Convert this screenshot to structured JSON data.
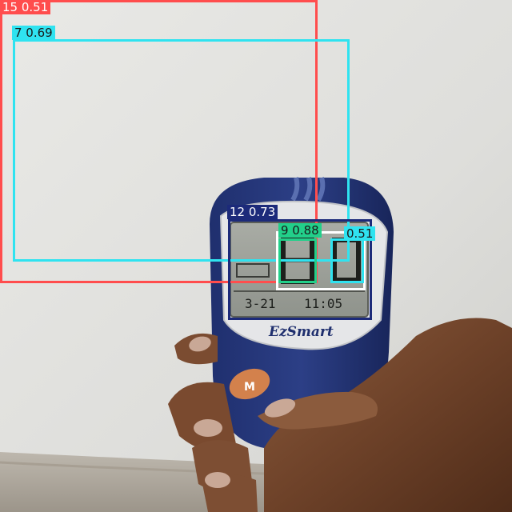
{
  "device": {
    "brand": "EzSmart",
    "button_label": "M",
    "display_small_text": "3-21",
    "display_time_text": "11:05"
  },
  "detections": [
    {
      "id": "det-15",
      "label": "15 0.51",
      "color": "#ff4d4d",
      "text_color": "#ffffff"
    },
    {
      "id": "det-7",
      "label": "7 0.69",
      "color": "#2fe3f0",
      "text_color": "#1a1a1a"
    },
    {
      "id": "det-12",
      "label": "12 0.73",
      "color": "#1c2a7a",
      "text_color": "#ffffff"
    },
    {
      "id": "det-9",
      "label": "9 0.88",
      "color": "#22d08a",
      "text_color": "#1a1a1a"
    },
    {
      "id": "det-white",
      "label": "",
      "color": "#ffffff",
      "text_color": "#1a1a1a"
    },
    {
      "id": "det-cyan2",
      "label": "0.51",
      "color": "#2fe3f0",
      "text_color": "#1a1a1a"
    }
  ]
}
